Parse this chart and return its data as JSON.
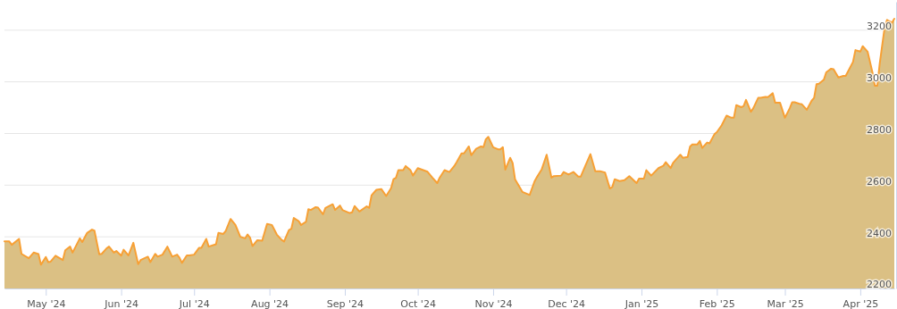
{
  "chart_data": {
    "type": "area",
    "grid": "y",
    "xlim": [
      "2024-04-14",
      "2025-04-15"
    ],
    "xticks": [
      {
        "value": "2024-05-01",
        "label": "May '24"
      },
      {
        "value": "2024-06-01",
        "label": "Jun '24"
      },
      {
        "value": "2024-07-01",
        "label": "Jul '24"
      },
      {
        "value": "2024-08-01",
        "label": "Aug '24"
      },
      {
        "value": "2024-09-01",
        "label": "Sep '24"
      },
      {
        "value": "2024-10-01",
        "label": "Oct '24"
      },
      {
        "value": "2024-11-01",
        "label": "Nov '24"
      },
      {
        "value": "2024-12-01",
        "label": "Dec '24"
      },
      {
        "value": "2025-01-01",
        "label": "Jan '25"
      },
      {
        "value": "2025-02-01",
        "label": "Feb '25"
      },
      {
        "value": "2025-03-01",
        "label": "Mar '25"
      },
      {
        "value": "2025-04-01",
        "label": "Apr '25"
      }
    ],
    "ylim": [
      2200,
      3310
    ],
    "yticks": [
      2200,
      2400,
      2600,
      2800,
      3000,
      3200
    ],
    "x": [
      "2024-04-14",
      "2024-04-16",
      "2024-04-17",
      "2024-04-20",
      "2024-04-21",
      "2024-04-24",
      "2024-04-26",
      "2024-04-28",
      "2024-04-29",
      "2024-05-01",
      "2024-05-02",
      "2024-05-03",
      "2024-05-05",
      "2024-05-08",
      "2024-05-09",
      "2024-05-11",
      "2024-05-12",
      "2024-05-13",
      "2024-05-15",
      "2024-05-16",
      "2024-05-18",
      "2024-05-20",
      "2024-05-21",
      "2024-05-23",
      "2024-05-24",
      "2024-05-26",
      "2024-05-27",
      "2024-05-29",
      "2024-05-30",
      "2024-06-01",
      "2024-06-02",
      "2024-06-04",
      "2024-06-06",
      "2024-06-08",
      "2024-06-09",
      "2024-06-12",
      "2024-06-13",
      "2024-06-15",
      "2024-06-16",
      "2024-06-18",
      "2024-06-20",
      "2024-06-22",
      "2024-06-24",
      "2024-06-25",
      "2024-06-26",
      "2024-06-28",
      "2024-06-29",
      "2024-07-01",
      "2024-07-03",
      "2024-07-04",
      "2024-07-06",
      "2024-07-07",
      "2024-07-10",
      "2024-07-11",
      "2024-07-13",
      "2024-07-14",
      "2024-07-16",
      "2024-07-18",
      "2024-07-20",
      "2024-07-22",
      "2024-07-23",
      "2024-07-24",
      "2024-07-25",
      "2024-07-27",
      "2024-07-29",
      "2024-07-31",
      "2024-08-02",
      "2024-08-04",
      "2024-08-06",
      "2024-08-07",
      "2024-08-09",
      "2024-08-10",
      "2024-08-11",
      "2024-08-13",
      "2024-08-14",
      "2024-08-16",
      "2024-08-17",
      "2024-08-18",
      "2024-08-20",
      "2024-08-21",
      "2024-08-23",
      "2024-08-24",
      "2024-08-27",
      "2024-08-28",
      "2024-08-30",
      "2024-08-31",
      "2024-09-03",
      "2024-09-04",
      "2024-09-05",
      "2024-09-07",
      "2024-09-10",
      "2024-09-11",
      "2024-09-12",
      "2024-09-14",
      "2024-09-16",
      "2024-09-18",
      "2024-09-20",
      "2024-09-21",
      "2024-09-22",
      "2024-09-23",
      "2024-09-25",
      "2024-09-26",
      "2024-09-28",
      "2024-09-29",
      "2024-10-01",
      "2024-10-05",
      "2024-10-07",
      "2024-10-09",
      "2024-10-10",
      "2024-10-12",
      "2024-10-14",
      "2024-10-16",
      "2024-10-17",
      "2024-10-19",
      "2024-10-20",
      "2024-10-22",
      "2024-10-23",
      "2024-10-25",
      "2024-10-27",
      "2024-10-28",
      "2024-10-29",
      "2024-10-30",
      "2024-11-01",
      "2024-11-03",
      "2024-11-04",
      "2024-11-05",
      "2024-11-06",
      "2024-11-08",
      "2024-11-09",
      "2024-11-10",
      "2024-11-13",
      "2024-11-15",
      "2024-11-16",
      "2024-11-18",
      "2024-11-19",
      "2024-11-21",
      "2024-11-23",
      "2024-11-25",
      "2024-11-26",
      "2024-11-29",
      "2024-11-30",
      "2024-12-02",
      "2024-12-04",
      "2024-12-06",
      "2024-12-07",
      "2024-12-09",
      "2024-12-11",
      "2024-12-13",
      "2024-12-15",
      "2024-12-17",
      "2024-12-19",
      "2024-12-20",
      "2024-12-21",
      "2024-12-23",
      "2024-12-25",
      "2024-12-27",
      "2024-12-30",
      "2024-12-31",
      "2025-01-02",
      "2025-01-03",
      "2025-01-05",
      "2025-01-08",
      "2025-01-10",
      "2025-01-11",
      "2025-01-13",
      "2025-01-14",
      "2025-01-17",
      "2025-01-18",
      "2025-01-20",
      "2025-01-21",
      "2025-01-22",
      "2025-01-24",
      "2025-01-25",
      "2025-01-26",
      "2025-01-28",
      "2025-01-29",
      "2025-01-31",
      "2025-02-01",
      "2025-02-03",
      "2025-02-05",
      "2025-02-07",
      "2025-02-08",
      "2025-02-09",
      "2025-02-11",
      "2025-02-12",
      "2025-02-13",
      "2025-02-15",
      "2025-02-16",
      "2025-02-18",
      "2025-02-19",
      "2025-02-21",
      "2025-02-22",
      "2025-02-24",
      "2025-02-25",
      "2025-02-27",
      "2025-03-01",
      "2025-03-03",
      "2025-03-04",
      "2025-03-05",
      "2025-03-07",
      "2025-03-08",
      "2025-03-10",
      "2025-03-12",
      "2025-03-13",
      "2025-03-14",
      "2025-03-15",
      "2025-03-17",
      "2025-03-18",
      "2025-03-20",
      "2025-03-21",
      "2025-03-23",
      "2025-03-25",
      "2025-03-26",
      "2025-03-29",
      "2025-03-30",
      "2025-04-01",
      "2025-04-02",
      "2025-04-04",
      "2025-04-06",
      "2025-04-07",
      "2025-04-08",
      "2025-04-09",
      "2025-04-11",
      "2025-04-12",
      "2025-04-14",
      "2025-04-15"
    ],
    "series": [
      {
        "color": "#f7a035",
        "values": [
          2382,
          2382,
          2369,
          2392,
          2334,
          2317,
          2339,
          2333,
          2292,
          2322,
          2302,
          2304,
          2327,
          2310,
          2348,
          2362,
          2339,
          2357,
          2394,
          2380,
          2415,
          2428,
          2424,
          2332,
          2334,
          2355,
          2362,
          2339,
          2345,
          2327,
          2350,
          2328,
          2377,
          2294,
          2310,
          2323,
          2302,
          2334,
          2323,
          2331,
          2362,
          2323,
          2331,
          2319,
          2299,
          2328,
          2328,
          2331,
          2357,
          2357,
          2392,
          2362,
          2371,
          2415,
          2411,
          2423,
          2469,
          2446,
          2400,
          2394,
          2409,
          2397,
          2364,
          2387,
          2385,
          2450,
          2446,
          2409,
          2388,
          2382,
          2426,
          2431,
          2473,
          2461,
          2446,
          2458,
          2507,
          2504,
          2515,
          2513,
          2487,
          2512,
          2526,
          2504,
          2521,
          2504,
          2492,
          2495,
          2519,
          2498,
          2518,
          2512,
          2561,
          2582,
          2585,
          2558,
          2588,
          2623,
          2628,
          2658,
          2658,
          2674,
          2658,
          2637,
          2666,
          2652,
          2629,
          2608,
          2629,
          2658,
          2651,
          2674,
          2689,
          2723,
          2723,
          2750,
          2716,
          2741,
          2750,
          2747,
          2778,
          2787,
          2747,
          2739,
          2739,
          2747,
          2660,
          2706,
          2686,
          2623,
          2574,
          2566,
          2562,
          2614,
          2631,
          2662,
          2718,
          2629,
          2635,
          2637,
          2651,
          2641,
          2651,
          2633,
          2633,
          2677,
          2720,
          2654,
          2654,
          2649,
          2587,
          2593,
          2623,
          2616,
          2619,
          2635,
          2608,
          2625,
          2625,
          2658,
          2637,
          2666,
          2675,
          2689,
          2666,
          2686,
          2718,
          2706,
          2709,
          2750,
          2758,
          2758,
          2771,
          2744,
          2765,
          2762,
          2797,
          2805,
          2832,
          2869,
          2861,
          2861,
          2910,
          2902,
          2906,
          2930,
          2884,
          2898,
          2938,
          2938,
          2942,
          2941,
          2956,
          2919,
          2919,
          2861,
          2898,
          2921,
          2921,
          2915,
          2913,
          2892,
          2927,
          2938,
          2991,
          2993,
          3008,
          3037,
          3051,
          3049,
          3017,
          3023,
          3023,
          3077,
          3123,
          3117,
          3138,
          3117,
          3037,
          2985,
          2985,
          3071,
          3209,
          3240,
          3229,
          3244
        ]
      }
    ]
  }
}
